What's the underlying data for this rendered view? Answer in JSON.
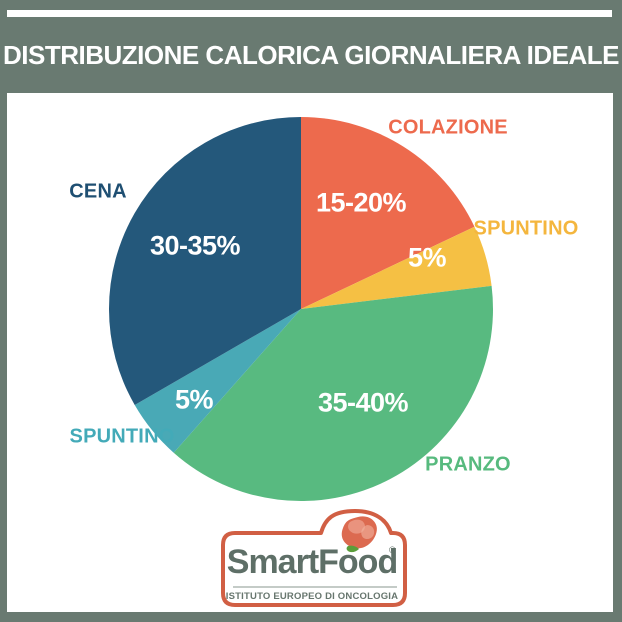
{
  "page": {
    "title": "DISTRIBUZIONE CALORICA GIORNALIERA IDEALE",
    "background_color": "#697A71",
    "panel_color": "#FFFFFF"
  },
  "chart_data": {
    "type": "pie",
    "title": "DISTRIBUZIONE CALORICA GIORNALIERA IDEALE",
    "direction": "clockwise",
    "start_angle_deg": 0,
    "legend_position": "labels-around-pie",
    "value_label_color": "#FFFFFF",
    "segments": [
      {
        "label": "COLAZIONE",
        "value_label": "15-20%",
        "value_min": 15,
        "value_max": 20,
        "value_mid": 17.5,
        "color": "#ED6A4D",
        "label_color": "#ED6A4D"
      },
      {
        "label": "SPUNTINO",
        "value_label": "5%",
        "value_min": 5,
        "value_max": 5,
        "value_mid": 5,
        "color": "#F5C044",
        "label_color": "#F4B63E"
      },
      {
        "label": "PRANZO",
        "value_label": "35-40%",
        "value_min": 35,
        "value_max": 40,
        "value_mid": 37.5,
        "color": "#58BA80",
        "label_color": "#57BA7E"
      },
      {
        "label": "SPUNTINO",
        "value_label": "5%",
        "value_min": 5,
        "value_max": 5,
        "value_mid": 5,
        "color": "#49A9B6",
        "label_color": "#43AAB8"
      },
      {
        "label": "CENA",
        "value_label": "30-35%",
        "value_min": 30,
        "value_max": 35,
        "value_mid": 32.5,
        "color": "#24587B",
        "label_color": "#1F4F72"
      }
    ]
  },
  "logo": {
    "brand": "SmartFood",
    "registered_mark": "®",
    "subtitle": "ISTITUTO EUROPEO DI ONCOLOGIA",
    "border_color": "#D15F44",
    "text_color": "#5E6F67",
    "berry_color": "#DC6A50",
    "berry_highlight_color": "#EDA18D",
    "leaf_color": "#5B9E3A"
  }
}
